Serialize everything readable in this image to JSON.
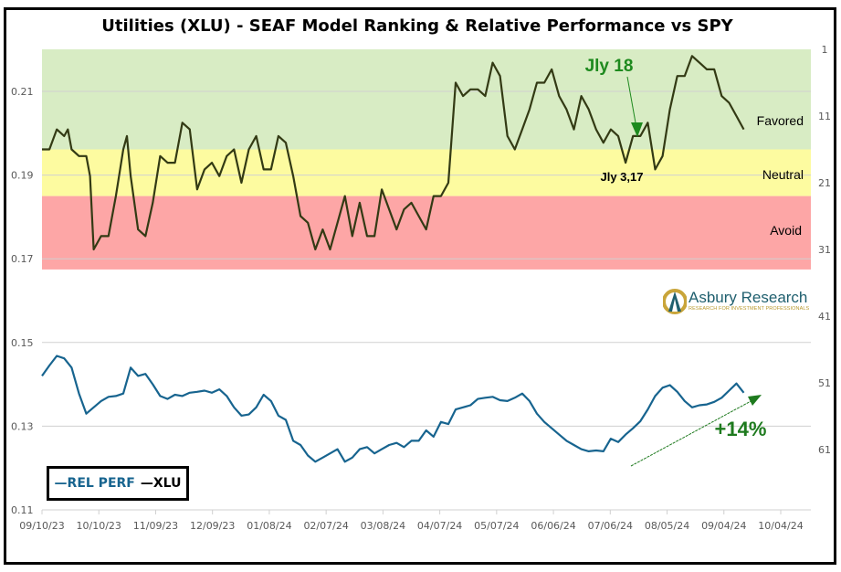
{
  "chart_data": {
    "type": "line",
    "title": "Utilities (XLU) - SEAF Model Ranking & Relative Performance vs SPY",
    "xlabel": "",
    "ylabel_left": "",
    "ylabel_right": "",
    "x_tick_labels": [
      "09/10/23",
      "10/10/23",
      "11/09/23",
      "12/09/23",
      "01/08/24",
      "02/07/24",
      "03/08/24",
      "04/07/24",
      "05/07/24",
      "06/06/24",
      "07/06/24",
      "08/05/24",
      "09/04/24",
      "10/04/24"
    ],
    "y_left_ticks": [
      "0.11",
      "0.13",
      "0.15",
      "0.17",
      "0.19",
      "0.21"
    ],
    "y_left_range": [
      0.11,
      0.21
    ],
    "y_right_ticks": [
      "1",
      "11",
      "21",
      "31",
      "41",
      "51",
      "61"
    ],
    "y_right_range_inverted": [
      1,
      61
    ],
    "grid": true,
    "legend_position": "bottom-left",
    "zones": [
      {
        "name": "Favored",
        "rank_from": 1,
        "rank_to": 16,
        "color": "#d8ecc4"
      },
      {
        "name": "Neutral",
        "rank_from": 16,
        "rank_to": 23,
        "color": "#fdfba0"
      },
      {
        "name": "Avoid",
        "rank_from": 23,
        "rank_to": 34,
        "color": "#fda6a6"
      }
    ],
    "series": [
      {
        "name": "XLU",
        "axis": "right",
        "color": "#333a14",
        "note": "SEAF rank (lower = better), sampled across date range",
        "t": [
          0,
          0.01,
          0.02,
          0.03,
          0.035,
          0.04,
          0.05,
          0.06,
          0.065,
          0.07,
          0.08,
          0.09,
          0.1,
          0.11,
          0.115,
          0.12,
          0.13,
          0.14,
          0.15,
          0.16,
          0.17,
          0.18,
          0.19,
          0.2,
          0.21,
          0.22,
          0.23,
          0.24,
          0.25,
          0.26,
          0.27,
          0.28,
          0.29,
          0.3,
          0.31,
          0.32,
          0.33,
          0.34,
          0.35,
          0.36,
          0.37,
          0.38,
          0.39,
          0.4,
          0.41,
          0.42,
          0.43,
          0.44,
          0.45,
          0.46,
          0.47,
          0.48,
          0.49,
          0.5,
          0.51,
          0.52,
          0.53,
          0.54,
          0.55,
          0.56,
          0.57,
          0.58,
          0.59,
          0.6,
          0.61,
          0.62,
          0.63,
          0.64,
          0.65,
          0.66,
          0.67,
          0.68,
          0.69,
          0.7,
          0.71,
          0.72,
          0.73,
          0.74,
          0.75,
          0.76,
          0.77,
          0.78,
          0.79,
          0.8,
          0.81,
          0.82,
          0.83,
          0.84,
          0.85,
          0.86,
          0.87,
          0.88,
          0.89,
          0.9,
          0.91,
          0.92,
          0.93,
          0.94,
          0.95
        ],
        "values": [
          16,
          16,
          13,
          14,
          13,
          16,
          17,
          17,
          20,
          31,
          29,
          29,
          23,
          16,
          14,
          20,
          28,
          29,
          24,
          17,
          18,
          18,
          12,
          13,
          22,
          19,
          18,
          20,
          17,
          16,
          21,
          16,
          14,
          19,
          19,
          14,
          15,
          20,
          26,
          27,
          31,
          28,
          31,
          27,
          23,
          29,
          24,
          29,
          29,
          22,
          25,
          28,
          25,
          24,
          26,
          28,
          23,
          23,
          21,
          6,
          8,
          7,
          7,
          8,
          3,
          5,
          14,
          16,
          13,
          10,
          6,
          6,
          4,
          8,
          10,
          13,
          8,
          10,
          13,
          15,
          13,
          14,
          18,
          14,
          14,
          12,
          19,
          17,
          10,
          5,
          5,
          2,
          3,
          4,
          4,
          8,
          9,
          11,
          13
        ]
      },
      {
        "name": "REL PERF",
        "axis": "left",
        "color": "#17648f",
        "note": "XLU/SPY relative performance ratio",
        "t": [
          0,
          0.01,
          0.02,
          0.03,
          0.04,
          0.05,
          0.06,
          0.07,
          0.08,
          0.09,
          0.1,
          0.11,
          0.12,
          0.13,
          0.14,
          0.15,
          0.16,
          0.17,
          0.18,
          0.19,
          0.2,
          0.21,
          0.22,
          0.23,
          0.24,
          0.25,
          0.26,
          0.27,
          0.28,
          0.29,
          0.3,
          0.31,
          0.32,
          0.33,
          0.34,
          0.35,
          0.36,
          0.37,
          0.38,
          0.39,
          0.4,
          0.41,
          0.42,
          0.43,
          0.44,
          0.45,
          0.46,
          0.47,
          0.48,
          0.49,
          0.5,
          0.51,
          0.52,
          0.53,
          0.54,
          0.55,
          0.56,
          0.57,
          0.58,
          0.59,
          0.6,
          0.61,
          0.62,
          0.63,
          0.64,
          0.65,
          0.66,
          0.67,
          0.68,
          0.69,
          0.7,
          0.71,
          0.72,
          0.73,
          0.74,
          0.75,
          0.76,
          0.77,
          0.78,
          0.79,
          0.8,
          0.81,
          0.82,
          0.83,
          0.84,
          0.85,
          0.86,
          0.87,
          0.88,
          0.89,
          0.9,
          0.91,
          0.92,
          0.93,
          0.94,
          0.95
        ],
        "values": [
          0.142,
          0.1445,
          0.1468,
          0.1462,
          0.144,
          0.1378,
          0.133,
          0.1345,
          0.136,
          0.137,
          0.1372,
          0.1378,
          0.144,
          0.142,
          0.1425,
          0.14,
          0.1372,
          0.1365,
          0.1375,
          0.1372,
          0.138,
          0.1382,
          0.1385,
          0.138,
          0.1388,
          0.1372,
          0.1345,
          0.1325,
          0.1328,
          0.1345,
          0.1375,
          0.136,
          0.1325,
          0.1315,
          0.1265,
          0.1255,
          0.123,
          0.1215,
          0.1225,
          0.1235,
          0.1245,
          0.1215,
          0.1225,
          0.1245,
          0.125,
          0.1235,
          0.1245,
          0.1255,
          0.126,
          0.125,
          0.1265,
          0.1265,
          0.129,
          0.1275,
          0.131,
          0.1305,
          0.134,
          0.1345,
          0.135,
          0.1365,
          0.1368,
          0.137,
          0.1362,
          0.136,
          0.1368,
          0.1378,
          0.136,
          0.133,
          0.131,
          0.1295,
          0.128,
          0.1265,
          0.1255,
          0.1245,
          0.124,
          0.1242,
          0.124,
          0.127,
          0.1262,
          0.128,
          0.1295,
          0.1312,
          0.134,
          0.1372,
          0.1392,
          0.1398,
          0.1382,
          0.136,
          0.1345,
          0.135,
          0.1352,
          0.1358,
          0.1368,
          0.1385,
          0.1402,
          0.138
        ]
      }
    ],
    "annotations": [
      {
        "text": "Jly 18",
        "style": "green-bold",
        "arrow": true
      },
      {
        "text": "Jly 3,17",
        "style": "black-bold"
      },
      {
        "text": "+14%",
        "style": "green-bold",
        "arrow": true
      }
    ]
  },
  "title": "Utilities (XLU) - SEAF Model Ranking & Relative Performance vs SPY",
  "zones": {
    "favored": "Favored",
    "neutral": "Neutral",
    "avoid": "Avoid"
  },
  "annotations": {
    "jly18": "Jly 18",
    "jly317": "Jly 3,17",
    "pct": "+14%"
  },
  "legend": {
    "rel_perf": "—REL PERF",
    "xlu": "—XLU"
  },
  "logo": {
    "name": "Asbury Research",
    "tagline": "RESEARCH FOR INVESTMENT PROFESSIONALS"
  },
  "colors": {
    "rel_perf": "#17648f",
    "xlu": "#333a14",
    "annotation_green": "#1e8a1e",
    "favored": "#d8ecc4",
    "neutral": "#fdfba0",
    "avoid": "#fda6a6"
  }
}
